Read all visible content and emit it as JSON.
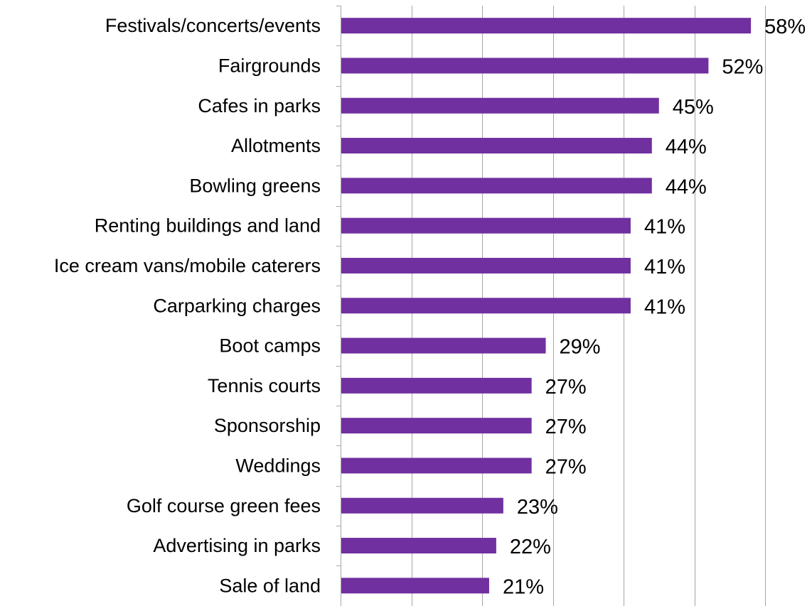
{
  "chart_data": {
    "type": "bar",
    "orientation": "horizontal",
    "categories": [
      "Festivals/concerts/events",
      "Fairgrounds",
      "Cafes in parks",
      "Allotments",
      "Bowling greens",
      "Renting buildings and land",
      "Ice cream vans/mobile caterers",
      "Carparking charges",
      "Boot camps",
      "Tennis courts",
      "Sponsorship",
      "Weddings",
      "Golf course green fees",
      "Advertising in parks",
      "Sale of land"
    ],
    "values": [
      58,
      52,
      45,
      44,
      44,
      41,
      41,
      41,
      29,
      27,
      27,
      27,
      23,
      22,
      21
    ],
    "value_labels": [
      "58%",
      "52%",
      "45%",
      "44%",
      "44%",
      "41%",
      "41%",
      "41%",
      "29%",
      "27%",
      "27%",
      "27%",
      "23%",
      "22%",
      "21%"
    ],
    "value_suffix": "%",
    "xlim": [
      0,
      60
    ],
    "x_gridlines": [
      0,
      10,
      20,
      30,
      40,
      50,
      60
    ],
    "grid": true,
    "legend": "none",
    "title": "",
    "xlabel": "",
    "ylabel": "",
    "colors": {
      "bar": "#7030A0",
      "grid": "#A6A6A6",
      "text": "#000000"
    }
  }
}
